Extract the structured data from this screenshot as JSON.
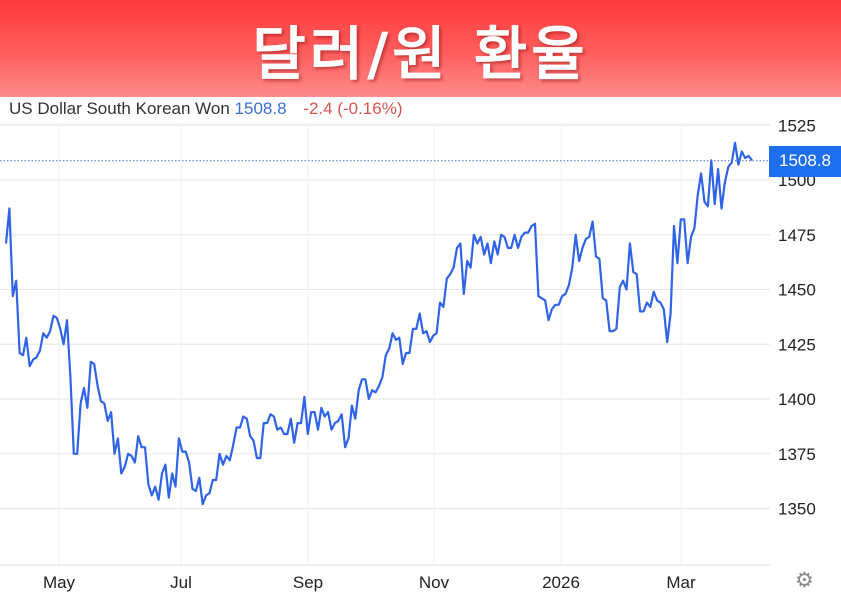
{
  "banner": {
    "title": "달러/원 환율"
  },
  "legend": {
    "name": "US Dollar South Korean Won",
    "price": "1508.8",
    "change": "-2.4 (-0.16%)"
  },
  "last_price_badge": "1508.8",
  "settings_icon": "gear-icon",
  "colors": {
    "line": "#2f63e8",
    "banner": "#ff4a4a",
    "badge": "#1e6ef0",
    "change": "#d9534f",
    "price": "#3b6fd8"
  },
  "chart_data": {
    "type": "line",
    "title": "",
    "xlabel": "",
    "ylabel": "",
    "ylim": [
      1325,
      1535
    ],
    "grid": true,
    "y_axis_side": "right",
    "y_ticks": [
      "1350",
      "1375",
      "1400",
      "1425",
      "1450",
      "1475",
      "1500",
      "1525"
    ],
    "x_ticks": [
      "May",
      "Jul",
      "Sep",
      "Nov",
      "2026",
      "Mar"
    ],
    "last_value": 1508.8,
    "series": [
      {
        "values": [
          1471,
          1487,
          1447,
          1454,
          1421,
          1420,
          1428,
          1415,
          1418,
          1419,
          1422,
          1430,
          1428,
          1431,
          1438,
          1437,
          1432,
          1425,
          1436,
          1410,
          1375,
          1375,
          1398,
          1405,
          1396,
          1417,
          1416,
          1406,
          1399,
          1398,
          1390,
          1394,
          1375,
          1382,
          1366,
          1369,
          1375,
          1374,
          1371,
          1383,
          1378,
          1378,
          1361,
          1356,
          1360,
          1354,
          1366,
          1370,
          1355,
          1366,
          1360,
          1382,
          1376,
          1376,
          1371,
          1359,
          1358,
          1364,
          1352,
          1356,
          1357,
          1363,
          1363,
          1375,
          1370,
          1374,
          1372,
          1379,
          1387,
          1387,
          1392,
          1391,
          1383,
          1381,
          1373,
          1373,
          1389,
          1389,
          1393,
          1392,
          1386,
          1387,
          1384,
          1384,
          1391,
          1380,
          1389,
          1389,
          1401,
          1384,
          1394,
          1394,
          1386,
          1396,
          1392,
          1394,
          1386,
          1389,
          1390,
          1393,
          1378,
          1382,
          1397,
          1391,
          1404,
          1409,
          1409,
          1400,
          1404,
          1403,
          1406,
          1410,
          1420,
          1423,
          1430,
          1427,
          1428,
          1416,
          1421,
          1421,
          1432,
          1432,
          1439,
          1430,
          1431,
          1426,
          1429,
          1430,
          1444,
          1442,
          1455,
          1457,
          1460,
          1469,
          1471,
          1448,
          1463,
          1460,
          1475,
          1471,
          1474,
          1466,
          1471,
          1462,
          1472,
          1466,
          1475,
          1474,
          1469,
          1469,
          1475,
          1469,
          1474,
          1476,
          1476,
          1479,
          1480,
          1447,
          1446,
          1445,
          1436,
          1441,
          1443,
          1443,
          1447,
          1448,
          1452,
          1460,
          1475,
          1463,
          1469,
          1473,
          1474,
          1481,
          1465,
          1464,
          1446,
          1445,
          1431,
          1431,
          1432,
          1451,
          1454,
          1450,
          1471,
          1458,
          1457,
          1440,
          1440,
          1444,
          1442,
          1449,
          1445,
          1444,
          1441,
          1426,
          1439,
          1479,
          1462,
          1482,
          1482,
          1462,
          1474,
          1478,
          1493,
          1503,
          1490,
          1488,
          1509,
          1489,
          1505,
          1487,
          1499,
          1506,
          1508,
          1517,
          1507,
          1513,
          1510,
          1511,
          1509
        ]
      }
    ]
  }
}
